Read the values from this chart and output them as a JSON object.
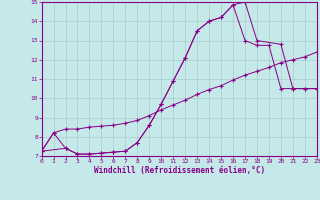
{
  "xlabel": "Windchill (Refroidissement éolien,°C)",
  "bg_color": "#c5e8e8",
  "grid_color": "#aacccc",
  "line_color": "#880088",
  "xlim": [
    0,
    23
  ],
  "ylim": [
    7,
    15
  ],
  "xticks": [
    0,
    1,
    2,
    3,
    4,
    5,
    6,
    7,
    8,
    9,
    10,
    11,
    12,
    13,
    14,
    15,
    16,
    17,
    18,
    19,
    20,
    21,
    22,
    23
  ],
  "yticks": [
    7,
    8,
    9,
    10,
    11,
    12,
    13,
    14,
    15
  ],
  "line1_x": [
    0,
    1,
    2,
    3,
    4,
    5,
    6,
    7,
    8,
    9,
    10,
    11,
    12,
    13,
    14,
    15,
    16,
    17,
    18,
    19,
    20,
    21,
    22,
    23
  ],
  "line1_y": [
    7.25,
    8.2,
    7.4,
    7.1,
    7.1,
    7.15,
    7.2,
    7.25,
    7.7,
    8.6,
    9.7,
    10.9,
    12.1,
    13.5,
    14.0,
    14.2,
    14.85,
    13.0,
    12.75,
    12.75,
    10.5,
    10.5,
    10.5,
    10.5
  ],
  "line2_x": [
    0,
    1,
    2,
    3,
    4,
    5,
    6,
    7,
    8,
    9,
    10,
    11,
    12,
    13,
    14,
    15,
    16,
    17,
    18,
    19,
    20,
    21,
    22,
    23
  ],
  "line2_y": [
    7.25,
    8.2,
    8.4,
    8.4,
    8.5,
    8.55,
    8.6,
    8.7,
    8.85,
    9.1,
    9.4,
    9.65,
    9.9,
    10.2,
    10.45,
    10.65,
    10.95,
    11.2,
    11.4,
    11.6,
    11.85,
    12.0,
    12.15,
    12.4
  ],
  "line3_x": [
    0,
    2,
    3,
    4,
    5,
    6,
    7,
    8,
    9,
    10,
    11,
    12,
    13,
    14,
    15,
    16,
    17,
    18,
    20,
    21,
    22,
    23
  ],
  "line3_y": [
    7.25,
    7.4,
    7.1,
    7.1,
    7.15,
    7.2,
    7.25,
    7.7,
    8.6,
    9.7,
    10.9,
    12.1,
    13.5,
    14.0,
    14.2,
    14.85,
    15.0,
    13.0,
    12.8,
    10.5,
    10.5,
    10.5
  ]
}
